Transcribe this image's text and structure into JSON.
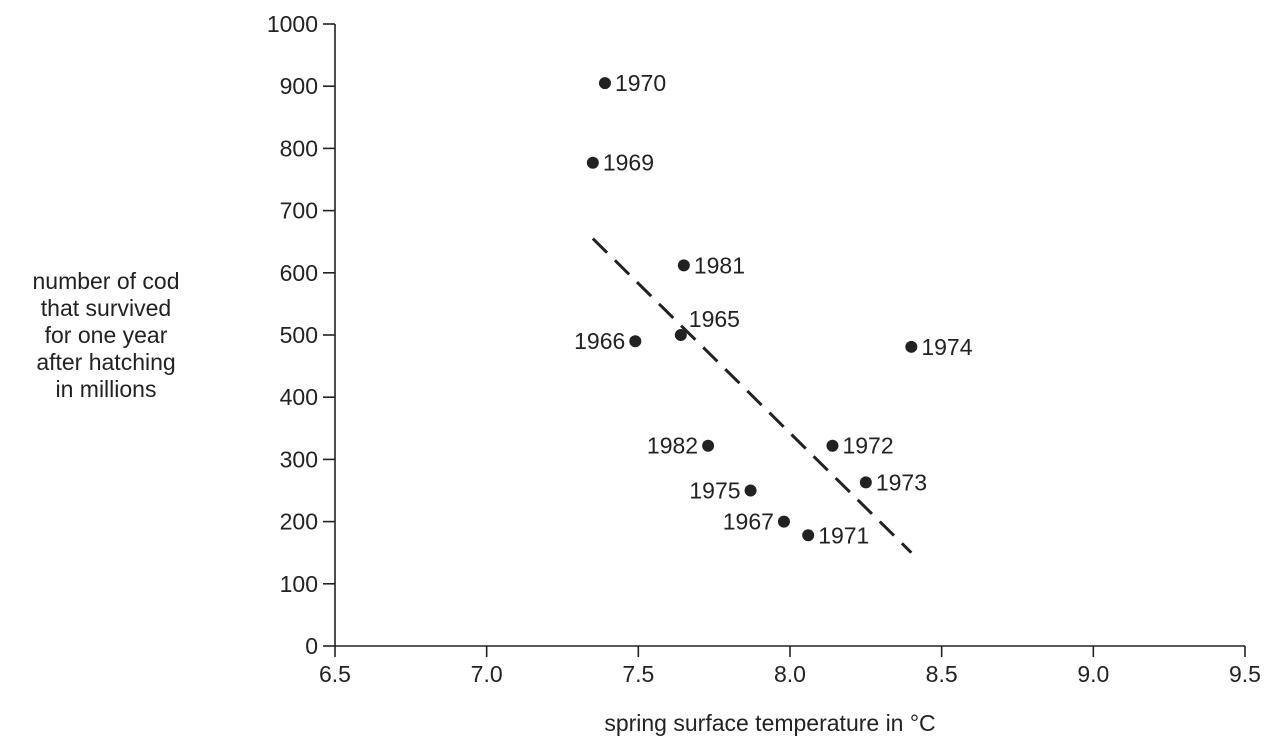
{
  "chart_data": {
    "type": "scatter",
    "xlabel": "spring surface temperature in °C",
    "ylabel_lines": [
      "number of cod",
      "that survived",
      "for one year",
      "after hatching",
      "in millions"
    ],
    "xlim": [
      6.5,
      9.5
    ],
    "ylim": [
      0,
      1000
    ],
    "x_ticks": [
      6.5,
      7.0,
      7.5,
      8.0,
      8.5,
      9.0,
      9.5
    ],
    "x_tick_labels": [
      "6.5",
      "7.0",
      "7.5",
      "8.0",
      "8.5",
      "9.0",
      "9.5"
    ],
    "y_ticks": [
      0,
      100,
      200,
      300,
      400,
      500,
      600,
      700,
      800,
      900,
      1000
    ],
    "y_tick_labels": [
      "0",
      "100",
      "200",
      "300",
      "400",
      "500",
      "600",
      "700",
      "800",
      "900",
      "1000"
    ],
    "grid": false,
    "points": [
      {
        "label": "1970",
        "x": 7.39,
        "y": 905,
        "label_side": "right"
      },
      {
        "label": "1969",
        "x": 7.35,
        "y": 777,
        "label_side": "right"
      },
      {
        "label": "1981",
        "x": 7.65,
        "y": 612,
        "label_side": "right"
      },
      {
        "label": "1965",
        "x": 7.64,
        "y": 500,
        "label_side": "upper-right"
      },
      {
        "label": "1966",
        "x": 7.49,
        "y": 490,
        "label_side": "left"
      },
      {
        "label": "1974",
        "x": 8.4,
        "y": 481,
        "label_side": "right"
      },
      {
        "label": "1982",
        "x": 7.73,
        "y": 322,
        "label_side": "left"
      },
      {
        "label": "1972",
        "x": 8.14,
        "y": 322,
        "label_side": "right"
      },
      {
        "label": "1973",
        "x": 8.25,
        "y": 263,
        "label_side": "right"
      },
      {
        "label": "1975",
        "x": 7.87,
        "y": 250,
        "label_side": "left"
      },
      {
        "label": "1967",
        "x": 7.98,
        "y": 200,
        "label_side": "left"
      },
      {
        "label": "1971",
        "x": 8.06,
        "y": 178,
        "label_side": "right"
      }
    ],
    "trend_line": {
      "style": "dashed",
      "x": [
        7.35,
        8.4
      ],
      "y": [
        655,
        150
      ]
    }
  }
}
